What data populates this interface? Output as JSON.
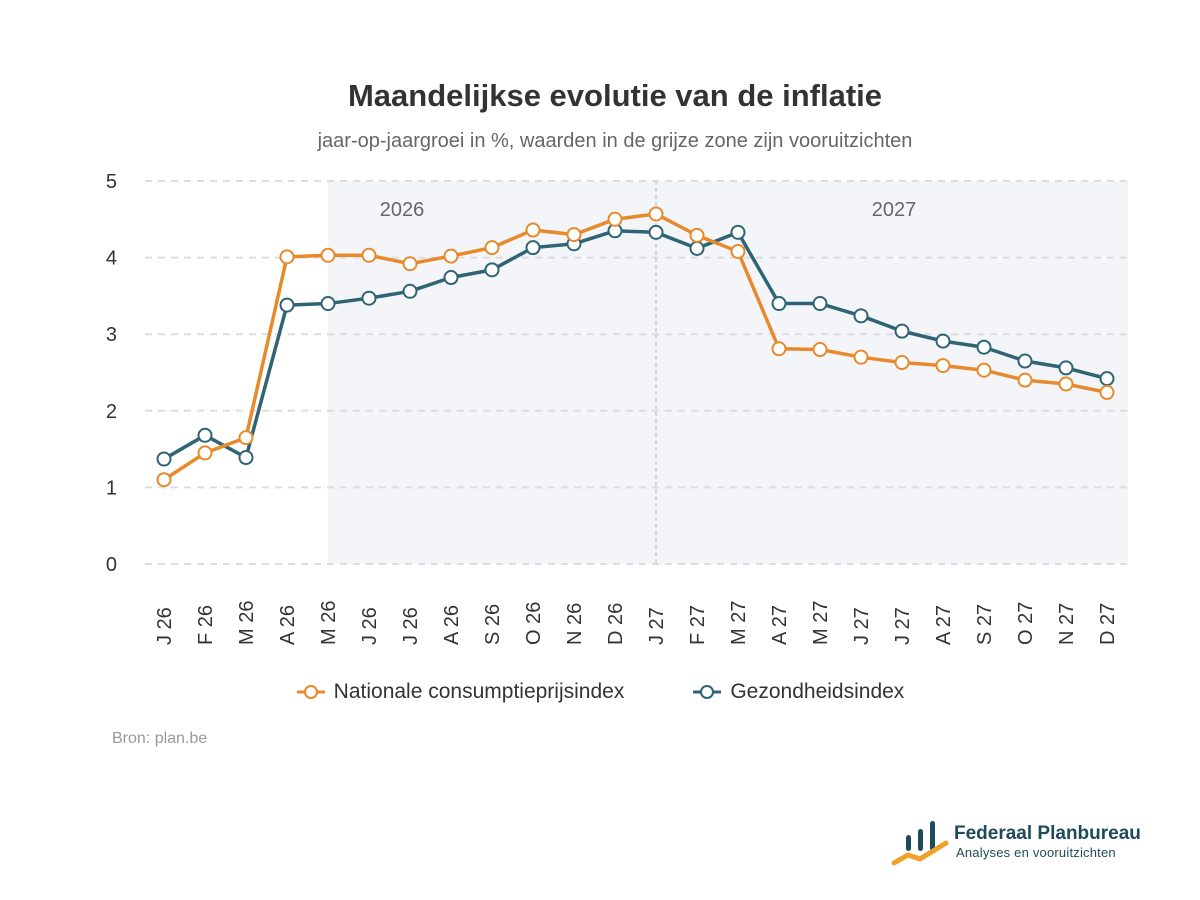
{
  "title": "Maandelijkse evolutie van de inflatie",
  "subtitle": "jaar-op-jaargroei in %, waarden in de grijze zone zijn vooruitzichten",
  "source": "Bron: plan.be",
  "brand": {
    "name": "Federaal Planbureau",
    "tagline": "Analyses en vooruitzichten"
  },
  "colors": {
    "cpi": "#e8892b",
    "health": "#2e6474",
    "forecast_zone": "#f4f5f9",
    "grid": "#dddddd"
  },
  "chart_data": {
    "type": "line",
    "categories": [
      "J 26",
      "F 26",
      "M 26",
      "A 26",
      "M 26",
      "J 26",
      "J 26",
      "A 26",
      "S 26",
      "O 26",
      "N 26",
      "D 26",
      "J 27",
      "F 27",
      "M 27",
      "A 27",
      "M 27",
      "J 27",
      "J 27",
      "A 27",
      "S 27",
      "O 27",
      "N 27",
      "D 27"
    ],
    "ylim": [
      0,
      5
    ],
    "yticks": [
      "0",
      "1",
      "2",
      "3",
      "4",
      "5"
    ],
    "grid": true,
    "legend_position": "bottom",
    "year_labels": [
      "2026",
      "2027"
    ],
    "forecast_start_index": 4,
    "year_divider_index": 12,
    "series": [
      {
        "name": "Nationale consumptieprijsindex",
        "color": "#e8892b",
        "values": [
          1.1,
          1.45,
          1.65,
          4.01,
          4.03,
          4.03,
          3.92,
          4.02,
          4.13,
          4.36,
          4.3,
          4.5,
          4.57,
          4.29,
          4.08,
          2.81,
          2.8,
          2.7,
          2.63,
          2.59,
          2.53,
          2.4,
          2.35,
          2.24
        ]
      },
      {
        "name": "Gezondheidsindex",
        "color": "#2e6474",
        "values": [
          1.37,
          1.68,
          1.39,
          3.38,
          3.4,
          3.47,
          3.56,
          3.74,
          3.84,
          4.13,
          4.18,
          4.35,
          4.33,
          4.12,
          4.33,
          3.4,
          3.4,
          3.24,
          3.04,
          2.91,
          2.83,
          2.65,
          2.56,
          2.42
        ]
      }
    ]
  }
}
